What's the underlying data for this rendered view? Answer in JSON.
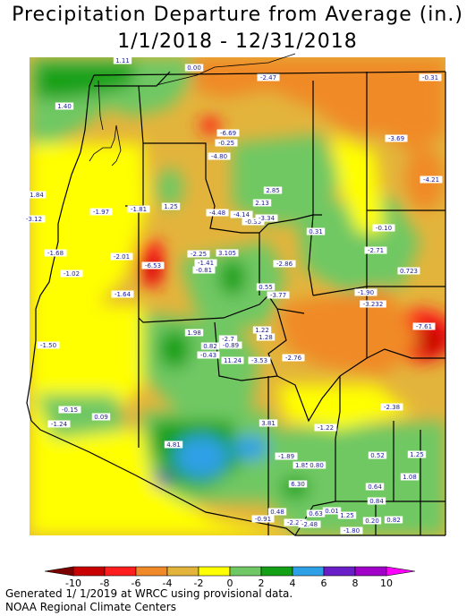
{
  "title": "Precipitation Departure from Average (in.)",
  "date_range": "1/1/2018 - 12/31/2018",
  "footer_line1": "Generated 1/ 1/2019 at WRCC using provisional data.",
  "footer_line2": "NOAA Regional Climate Centers",
  "legend": {
    "ticks": [
      "-10",
      "-8",
      "-6",
      "-4",
      "-2",
      "0",
      "2",
      "4",
      "6",
      "8",
      "10"
    ],
    "colors": [
      "#7a0000",
      "#c80000",
      "#ff1e1e",
      "#f08a28",
      "#e3b43c",
      "#ffff00",
      "#6fc864",
      "#14a014",
      "#2ea0e6",
      "#6a1ec8",
      "#a000c8",
      "#ff00ff"
    ]
  },
  "station_values": [
    "1.11",
    "0.00",
    "-2.47",
    "-0.31",
    "1.40",
    "-6.69",
    "-0.25",
    "-3.69",
    "-4.80",
    "-4.21",
    "1.84",
    "2.85",
    "1.25",
    "-3.12",
    "-1.97",
    "-1.81",
    "-4.48",
    "-4.14",
    "-0.33",
    "-3.34",
    "2.13",
    "0.31",
    "-0.10",
    "-1.68",
    "-2.01",
    "-2.25",
    "-1.41",
    "3.105",
    "-6.53",
    "-2.86",
    "-2.71",
    "0.723",
    "-1.02",
    "-0.81",
    "-1.64",
    "0.55",
    "-3.77",
    "-1.90",
    "-3.232",
    "-7.61",
    "1.22",
    "1.98",
    "-2.7",
    "1.28",
    "0.82",
    "-0.89",
    "-1.50",
    "-0.43",
    "11.24",
    "-3.53",
    "-2.76",
    "-0.15",
    "-2.38",
    "-1.24",
    "0.09",
    "3.81",
    "-1.22",
    "4.81",
    "-1.89",
    "1.851",
    "0.80",
    "0.52",
    "1.25",
    "1.08",
    "6.30",
    "0.64",
    "0.84",
    "0.48",
    "0.63",
    "0.01",
    "-0.91",
    "-2.22",
    "-2.48",
    "1.25",
    "0.20",
    "0.82",
    "-1.80"
  ]
}
